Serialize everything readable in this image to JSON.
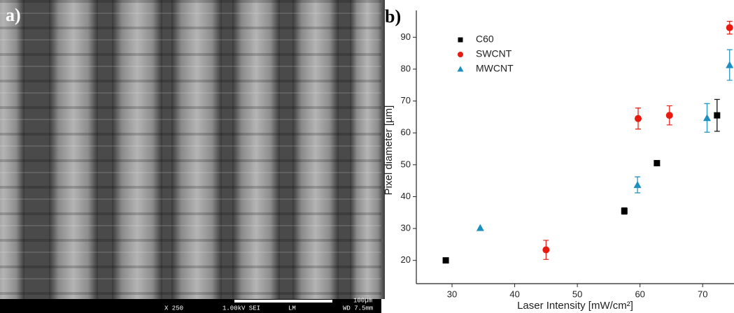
{
  "panel_a": {
    "label": "a)",
    "scale_label": "100µm",
    "magnification": "X 250",
    "voltage": "1.00kV SEI",
    "mode": "LM",
    "working_distance": "WD 7.5mm"
  },
  "chart_data": {
    "type": "scatter",
    "panel_label": "b)",
    "x_label": "Laser Intensity [mW/cm²]",
    "y_label": "Pixel diameter [µm]",
    "xlim": [
      24.3,
      75
    ],
    "ylim": [
      12.7,
      98.4
    ],
    "xticks": [
      30,
      40,
      50,
      60,
      70
    ],
    "yticks": [
      20,
      30,
      40,
      50,
      60,
      70,
      80,
      90
    ],
    "grid": false,
    "legend": "upper left",
    "series": [
      {
        "name": "C60",
        "color": "#000000",
        "marker": "square",
        "x": [
          29,
          57.5,
          62.7,
          72.3
        ],
        "values": [
          20,
          35.5,
          50.5,
          65.5
        ],
        "errors": [
          null,
          1,
          null,
          5
        ]
      },
      {
        "name": "SWCNT",
        "color": "#e8190f",
        "marker": "circle",
        "x": [
          45,
          59.7,
          64.7,
          74.3
        ],
        "values": [
          23.3,
          64.5,
          65.5,
          93
        ],
        "errors": [
          3,
          3.3,
          3,
          2
        ]
      },
      {
        "name": "MWCNT",
        "color": "#1a8fc0",
        "marker": "triangle",
        "x": [
          34.5,
          59.6,
          70.7,
          74.3
        ],
        "values": [
          30.2,
          43.7,
          64.7,
          81.3
        ],
        "errors": [
          null,
          2.5,
          4.5,
          4.8
        ]
      }
    ]
  }
}
